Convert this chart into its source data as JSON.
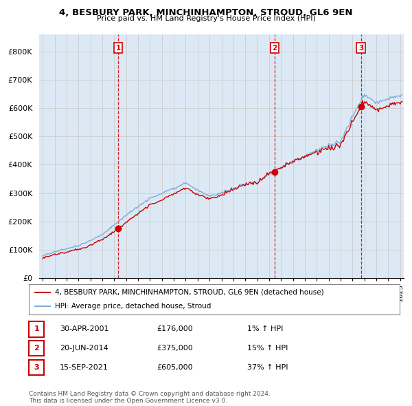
{
  "title": "4, BESBURY PARK, MINCHINHAMPTON, STROUD, GL6 9EN",
  "subtitle": "Price paid vs. HM Land Registry's House Price Index (HPI)",
  "ylabel_ticks": [
    "£0",
    "£100K",
    "£200K",
    "£300K",
    "£400K",
    "£500K",
    "£600K",
    "£700K",
    "£800K"
  ],
  "ytick_values": [
    0,
    100000,
    200000,
    300000,
    400000,
    500000,
    600000,
    700000,
    800000
  ],
  "ylim": [
    0,
    860000
  ],
  "xlim_start": 1994.7,
  "xlim_end": 2025.3,
  "sale_dates": [
    2001.33,
    2014.47,
    2021.71
  ],
  "sale_prices": [
    176000,
    375000,
    605000
  ],
  "sale_labels": [
    "1",
    "2",
    "3"
  ],
  "sale_color": "#cc0000",
  "hpi_color": "#7aaedc",
  "plot_bg_color": "#dce9f5",
  "legend_entries": [
    "4, BESBURY PARK, MINCHINHAMPTON, STROUD, GL6 9EN (detached house)",
    "HPI: Average price, detached house, Stroud"
  ],
  "table_rows": [
    [
      "1",
      "30-APR-2001",
      "£176,000",
      "1% ↑ HPI"
    ],
    [
      "2",
      "20-JUN-2014",
      "£375,000",
      "15% ↑ HPI"
    ],
    [
      "3",
      "15-SEP-2021",
      "£605,000",
      "37% ↑ HPI"
    ]
  ],
  "footnote": "Contains HM Land Registry data © Crown copyright and database right 2024.\nThis data is licensed under the Open Government Licence v3.0.",
  "background_color": "#ffffff",
  "grid_color": "#cccccc",
  "vline_color": "#cc0000"
}
